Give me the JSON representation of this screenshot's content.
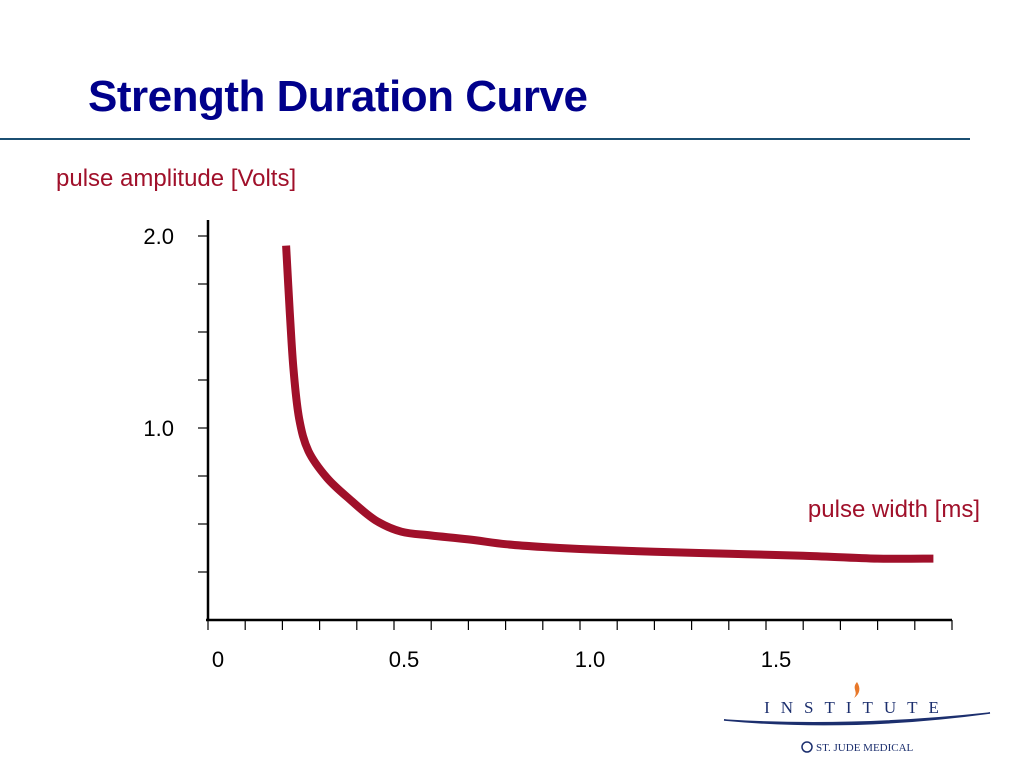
{
  "slide": {
    "title": "Strength Duration Curve"
  },
  "colors": {
    "title": "#00008b",
    "rule": "#1b4f72",
    "curve": "#a0102a",
    "axis": "#000000",
    "logo_navy": "#1c2f6e",
    "logo_flame": "#e8782a"
  },
  "chart_data": {
    "type": "line",
    "title": "",
    "ylabel": "pulse amplitude [Volts]",
    "xlabel": "pulse width [ms]",
    "xlim": [
      0,
      2.0
    ],
    "ylim": [
      0,
      2.0
    ],
    "x_tick_labels": [
      {
        "value": 0,
        "label": "0"
      },
      {
        "value": 0.5,
        "label": "0.5"
      },
      {
        "value": 1.0,
        "label": "1.0"
      },
      {
        "value": 1.5,
        "label": "1.5"
      }
    ],
    "x_minor_ticks": [
      0.1,
      0.2,
      0.3,
      0.4,
      0.6,
      0.7,
      0.8,
      0.9,
      1.1,
      1.2,
      1.3,
      1.4,
      1.6,
      1.7,
      1.8,
      1.9,
      2.0
    ],
    "y_tick_labels": [
      {
        "value": 1.0,
        "label": "1.0"
      },
      {
        "value": 2.0,
        "label": "2.0"
      }
    ],
    "y_minor_ticks": [
      0.25,
      0.5,
      0.75,
      1.25,
      1.5,
      1.75
    ],
    "grid": false,
    "series": [
      {
        "points": [
          [
            0.21,
            1.95
          ],
          [
            0.22,
            1.6
          ],
          [
            0.23,
            1.3
          ],
          [
            0.245,
            1.05
          ],
          [
            0.27,
            0.88
          ],
          [
            0.32,
            0.74
          ],
          [
            0.38,
            0.63
          ],
          [
            0.45,
            0.52
          ],
          [
            0.52,
            0.46
          ],
          [
            0.6,
            0.44
          ],
          [
            0.7,
            0.42
          ],
          [
            0.8,
            0.395
          ],
          [
            0.9,
            0.38
          ],
          [
            1.0,
            0.37
          ],
          [
            1.2,
            0.355
          ],
          [
            1.4,
            0.345
          ],
          [
            1.6,
            0.335
          ],
          [
            1.8,
            0.32
          ],
          [
            1.95,
            0.32
          ]
        ]
      }
    ]
  },
  "logo": {
    "word": "INSTITUTE",
    "company": "ST. JUDE MEDICAL"
  }
}
